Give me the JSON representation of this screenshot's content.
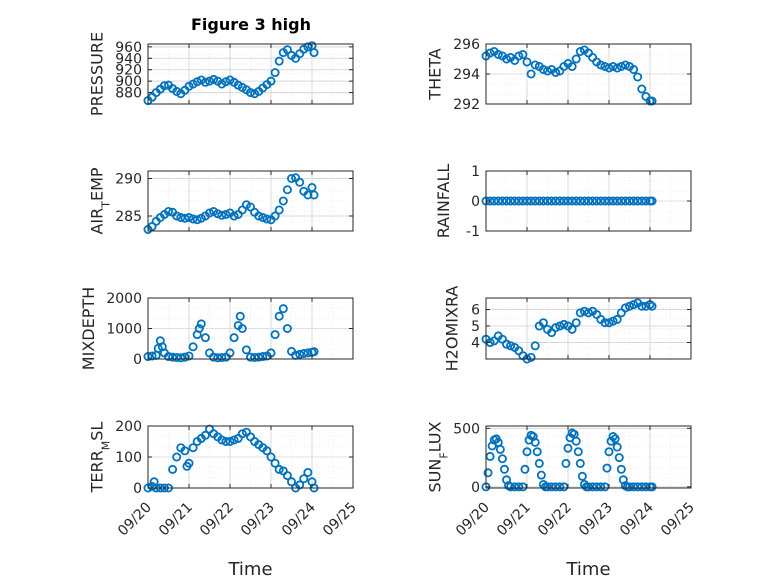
{
  "figure": {
    "title": "Figure 3 high"
  },
  "colors": {
    "marker": "#0072BD",
    "axis": "#262626",
    "grid": "#dddddd"
  },
  "chart_data": [
    {
      "type": "scatter",
      "ylabel": "PRESSURE",
      "xlabel": "",
      "title": "Figure 3 high",
      "ylim": [
        860,
        965
      ],
      "yticks": [
        "880",
        "900",
        "920",
        "940",
        "960"
      ],
      "xlim": [
        0,
        5
      ],
      "xticks": [],
      "grid": true,
      "marker": "circle",
      "x": [
        0.0,
        0.1,
        0.2,
        0.3,
        0.4,
        0.5,
        0.6,
        0.7,
        0.8,
        0.9,
        1.0,
        1.1,
        1.2,
        1.3,
        1.4,
        1.5,
        1.6,
        1.7,
        1.8,
        1.9,
        2.0,
        2.1,
        2.2,
        2.3,
        2.4,
        2.5,
        2.6,
        2.7,
        2.8,
        2.9,
        3.0,
        3.1,
        3.2,
        3.3,
        3.4,
        3.5,
        3.6,
        3.7,
        3.8,
        3.9,
        4.0,
        4.05
      ],
      "y": [
        866,
        872,
        880,
        886,
        892,
        893,
        887,
        882,
        878,
        884,
        891,
        895,
        899,
        902,
        898,
        900,
        903,
        900,
        895,
        899,
        902,
        898,
        893,
        889,
        885,
        880,
        878,
        882,
        888,
        894,
        900,
        915,
        935,
        950,
        955,
        945,
        940,
        948,
        956,
        960,
        962,
        950
      ]
    },
    {
      "type": "scatter",
      "ylabel": "THETA",
      "ylim": [
        292,
        296
      ],
      "yticks": [
        "292",
        "294",
        "296"
      ],
      "xlim": [
        0,
        5
      ],
      "xticks": [],
      "grid": true,
      "marker": "circle",
      "x": [
        0.0,
        0.1,
        0.2,
        0.3,
        0.4,
        0.5,
        0.6,
        0.7,
        0.8,
        0.9,
        1.0,
        1.1,
        1.2,
        1.3,
        1.4,
        1.5,
        1.6,
        1.7,
        1.8,
        1.9,
        2.0,
        2.1,
        2.2,
        2.3,
        2.4,
        2.5,
        2.6,
        2.7,
        2.8,
        2.9,
        3.0,
        3.1,
        3.2,
        3.3,
        3.4,
        3.5,
        3.6,
        3.7,
        3.8,
        3.9,
        4.0,
        4.05
      ],
      "y": [
        295.2,
        295.4,
        295.5,
        295.3,
        295.2,
        295.0,
        295.1,
        294.9,
        295.2,
        295.3,
        294.8,
        294.0,
        294.6,
        294.5,
        294.3,
        294.2,
        294.3,
        294.1,
        294.2,
        294.5,
        294.7,
        294.5,
        295.0,
        295.5,
        295.6,
        295.4,
        295.1,
        294.8,
        294.6,
        294.5,
        294.4,
        294.5,
        294.4,
        294.5,
        294.6,
        294.5,
        294.3,
        293.8,
        293.0,
        292.5,
        292.2,
        292.2
      ]
    },
    {
      "type": "scatter",
      "ylabel": "AIR_TEMP",
      "ylim": [
        283,
        291
      ],
      "yticks": [
        "285",
        "290"
      ],
      "xlim": [
        0,
        5
      ],
      "xticks": [],
      "grid": true,
      "marker": "circle",
      "x": [
        0.0,
        0.1,
        0.2,
        0.3,
        0.4,
        0.5,
        0.6,
        0.7,
        0.8,
        0.9,
        1.0,
        1.1,
        1.2,
        1.3,
        1.4,
        1.5,
        1.6,
        1.7,
        1.8,
        1.9,
        2.0,
        2.1,
        2.2,
        2.3,
        2.4,
        2.5,
        2.6,
        2.7,
        2.8,
        2.9,
        3.0,
        3.1,
        3.2,
        3.3,
        3.4,
        3.5,
        3.6,
        3.7,
        3.8,
        3.9,
        4.0,
        4.05
      ],
      "y": [
        283.2,
        283.6,
        284.3,
        284.8,
        285.2,
        285.6,
        285.5,
        285.0,
        284.8,
        284.7,
        284.8,
        284.6,
        284.5,
        284.7,
        285.0,
        285.4,
        285.6,
        285.3,
        285.1,
        285.2,
        285.4,
        285.0,
        285.2,
        285.8,
        286.5,
        286.2,
        285.5,
        285.0,
        284.8,
        284.6,
        284.5,
        285.0,
        285.8,
        287.0,
        288.5,
        290.0,
        290.1,
        289.5,
        288.3,
        287.8,
        288.8,
        287.8
      ]
    },
    {
      "type": "scatter",
      "ylabel": "RAINFALL",
      "ylim": [
        -1,
        1
      ],
      "yticks": [
        "-1",
        "0",
        "1"
      ],
      "xlim": [
        0,
        5
      ],
      "xticks": [],
      "grid": true,
      "marker": "circle",
      "x": [
        0.0,
        0.1,
        0.2,
        0.3,
        0.4,
        0.5,
        0.6,
        0.7,
        0.8,
        0.9,
        1.0,
        1.1,
        1.2,
        1.3,
        1.4,
        1.5,
        1.6,
        1.7,
        1.8,
        1.9,
        2.0,
        2.1,
        2.2,
        2.3,
        2.4,
        2.5,
        2.6,
        2.7,
        2.8,
        2.9,
        3.0,
        3.1,
        3.2,
        3.3,
        3.4,
        3.5,
        3.6,
        3.7,
        3.8,
        3.9,
        4.0,
        4.05
      ],
      "y": [
        0,
        0,
        0,
        0,
        0,
        0,
        0,
        0,
        0,
        0,
        0,
        0,
        0,
        0,
        0,
        0,
        0,
        0,
        0,
        0,
        0,
        0,
        0,
        0,
        0,
        0,
        0,
        0,
        0,
        0,
        0,
        0,
        0,
        0,
        0,
        0,
        0,
        0,
        0,
        0,
        0,
        0
      ]
    },
    {
      "type": "scatter",
      "ylabel": "MIXDEPTH",
      "ylim": [
        0,
        2000
      ],
      "yticks": [
        "0",
        "1000",
        "2000"
      ],
      "xlim": [
        0,
        5
      ],
      "xticks": [],
      "grid": true,
      "marker": "circle",
      "x": [
        0.0,
        0.1,
        0.2,
        0.25,
        0.3,
        0.35,
        0.4,
        0.5,
        0.6,
        0.7,
        0.8,
        0.9,
        1.0,
        1.1,
        1.2,
        1.25,
        1.3,
        1.4,
        1.5,
        1.6,
        1.7,
        1.8,
        1.9,
        2.0,
        2.1,
        2.2,
        2.25,
        2.3,
        2.4,
        2.5,
        2.6,
        2.7,
        2.8,
        2.9,
        3.0,
        3.1,
        3.2,
        3.3,
        3.4,
        3.5,
        3.6,
        3.7,
        3.8,
        3.9,
        4.0,
        4.05
      ],
      "y": [
        80,
        100,
        120,
        350,
        600,
        400,
        200,
        80,
        60,
        50,
        40,
        60,
        100,
        400,
        800,
        1000,
        1150,
        700,
        200,
        60,
        40,
        50,
        60,
        200,
        700,
        1100,
        1400,
        1000,
        300,
        60,
        50,
        60,
        80,
        100,
        200,
        800,
        1400,
        1650,
        1000,
        250,
        120,
        150,
        180,
        200,
        220,
        240
      ]
    },
    {
      "type": "scatter",
      "ylabel": "H2OMIXRA",
      "ylim": [
        3,
        6.7
      ],
      "yticks": [
        "4",
        "5",
        "6"
      ],
      "xlim": [
        0,
        5
      ],
      "xticks": [],
      "grid": true,
      "marker": "circle",
      "x": [
        0.0,
        0.1,
        0.2,
        0.3,
        0.4,
        0.5,
        0.6,
        0.7,
        0.8,
        0.9,
        1.0,
        1.1,
        1.2,
        1.3,
        1.4,
        1.5,
        1.6,
        1.7,
        1.8,
        1.9,
        2.0,
        2.1,
        2.2,
        2.3,
        2.4,
        2.5,
        2.6,
        2.7,
        2.8,
        2.9,
        3.0,
        3.1,
        3.2,
        3.3,
        3.4,
        3.5,
        3.6,
        3.7,
        3.8,
        3.9,
        4.0,
        4.05
      ],
      "y": [
        4.2,
        4.0,
        4.1,
        4.4,
        4.2,
        3.9,
        3.8,
        3.7,
        3.5,
        3.2,
        3.0,
        3.1,
        3.8,
        5.0,
        5.2,
        4.8,
        4.6,
        4.9,
        5.0,
        5.1,
        5.0,
        4.8,
        5.2,
        5.8,
        5.9,
        5.8,
        5.9,
        5.7,
        5.4,
        5.2,
        5.2,
        5.3,
        5.4,
        5.8,
        6.1,
        6.2,
        6.3,
        6.4,
        6.2,
        6.2,
        6.3,
        6.2
      ]
    },
    {
      "type": "scatter",
      "ylabel": "TERR_MSL",
      "ylim": [
        0,
        200
      ],
      "yticks": [
        "0",
        "100",
        "200"
      ],
      "xlim": [
        0,
        5
      ],
      "xticks": [
        "09/20",
        "09/21",
        "09/22",
        "09/23",
        "09/24",
        "09/25"
      ],
      "xaxis_label": "Time",
      "grid": true,
      "marker": "circle",
      "x": [
        0.0,
        0.1,
        0.15,
        0.2,
        0.3,
        0.4,
        0.5,
        0.6,
        0.7,
        0.8,
        0.9,
        0.95,
        1.0,
        1.1,
        1.2,
        1.3,
        1.4,
        1.5,
        1.6,
        1.7,
        1.8,
        1.9,
        2.0,
        2.1,
        2.2,
        2.3,
        2.4,
        2.5,
        2.6,
        2.7,
        2.8,
        2.9,
        3.0,
        3.1,
        3.2,
        3.3,
        3.4,
        3.5,
        3.6,
        3.7,
        3.8,
        3.9,
        4.0,
        4.05
      ],
      "y": [
        0,
        5,
        20,
        0,
        0,
        0,
        0,
        60,
        100,
        130,
        120,
        70,
        80,
        130,
        150,
        160,
        170,
        190,
        175,
        165,
        155,
        150,
        150,
        155,
        160,
        175,
        180,
        165,
        150,
        140,
        130,
        120,
        100,
        80,
        60,
        55,
        40,
        20,
        0,
        10,
        30,
        50,
        20,
        0
      ]
    },
    {
      "type": "scatter",
      "ylabel": "SUN_FLUX",
      "ylim": [
        -10,
        520
      ],
      "yticks": [
        "0",
        "500"
      ],
      "xlim": [
        0,
        5
      ],
      "xticks": [
        "09/20",
        "09/21",
        "09/22",
        "09/23",
        "09/24",
        "09/25"
      ],
      "xaxis_label": "Time",
      "grid": true,
      "marker": "circle",
      "x": [
        0.0,
        0.05,
        0.1,
        0.15,
        0.2,
        0.25,
        0.3,
        0.35,
        0.4,
        0.45,
        0.5,
        0.55,
        0.6,
        0.7,
        0.8,
        0.9,
        0.95,
        1.0,
        1.05,
        1.1,
        1.15,
        1.2,
        1.25,
        1.3,
        1.35,
        1.4,
        1.45,
        1.5,
        1.6,
        1.7,
        1.8,
        1.9,
        1.95,
        2.0,
        2.05,
        2.1,
        2.15,
        2.2,
        2.25,
        2.3,
        2.35,
        2.4,
        2.45,
        2.5,
        2.6,
        2.7,
        2.8,
        2.9,
        2.95,
        3.0,
        3.05,
        3.1,
        3.15,
        3.2,
        3.25,
        3.3,
        3.35,
        3.4,
        3.45,
        3.5,
        3.6,
        3.7,
        3.8,
        3.9,
        4.0,
        4.05
      ],
      "y": [
        0,
        120,
        260,
        350,
        400,
        410,
        380,
        320,
        240,
        150,
        60,
        10,
        0,
        0,
        0,
        0,
        150,
        300,
        400,
        440,
        430,
        380,
        300,
        200,
        100,
        20,
        0,
        0,
        0,
        0,
        0,
        0,
        200,
        330,
        420,
        460,
        450,
        390,
        300,
        200,
        90,
        20,
        0,
        0,
        0,
        0,
        0,
        0,
        160,
        300,
        390,
        430,
        410,
        340,
        250,
        150,
        60,
        10,
        0,
        0,
        0,
        0,
        0,
        0,
        0,
        0
      ]
    }
  ]
}
